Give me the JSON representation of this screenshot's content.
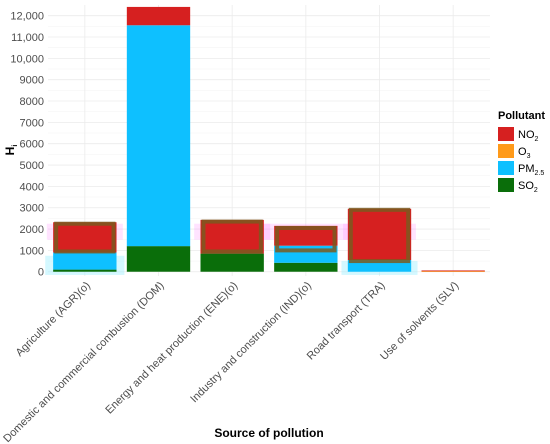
{
  "chart_data": {
    "type": "bar",
    "stacked": true,
    "xlabel": "Source of pollution",
    "ylabel": "H",
    "ylabel_subscript": "i",
    "ylim": [
      -200,
      12500
    ],
    "y_ticks": [
      0,
      1000,
      2000,
      3000,
      4000,
      5000,
      6000,
      7000,
      8000,
      9000,
      10000,
      11000,
      12000
    ],
    "y_tick_labels": [
      "0",
      "1000",
      "2000",
      "3000",
      "4000",
      "5000",
      "6000",
      "7000",
      "8000",
      "9000",
      "10,000",
      "11,000",
      "12,000"
    ],
    "grid": true,
    "categories": [
      "Agriculture (AGR)(o)",
      "Domestic and commercial combustion (DOM)",
      "Energy and heat production (ENE)(o)",
      "Industry and construction (IND)(o)",
      "Road transport (TRA)",
      "Use of solvents (SLV)"
    ],
    "legend": {
      "title": "Pollutant",
      "position": "right",
      "entries": [
        {
          "key": "NO2",
          "main": "NO",
          "sub": "2",
          "color": "#d62020"
        },
        {
          "key": "O3",
          "main": "O",
          "sub": "3",
          "color": "#ff9a1a"
        },
        {
          "key": "PM2.5",
          "main": "PM",
          "sub": "2.5",
          "color": "#0ec0ff"
        },
        {
          "key": "SO2",
          "main": "SO",
          "sub": "2",
          "color": "#0a6e0a"
        }
      ]
    },
    "series": [
      {
        "name": "SO2",
        "color": "#0a6e0a",
        "values": [
          100,
          1200,
          850,
          420,
          0,
          0
        ]
      },
      {
        "name": "PM2.5",
        "color": "#0ec0ff",
        "values": [
          800,
          10350,
          0,
          800,
          550,
          0
        ]
      },
      {
        "name": "O3",
        "color": "#ff9a1a",
        "values": [
          0,
          0,
          0,
          0,
          0,
          30
        ]
      },
      {
        "name": "NO2",
        "color": "#d62020",
        "values": [
          1420,
          860,
          1580,
          930,
          2400,
          30
        ]
      }
    ],
    "uncertainty_band_color": "#ff80ff"
  }
}
